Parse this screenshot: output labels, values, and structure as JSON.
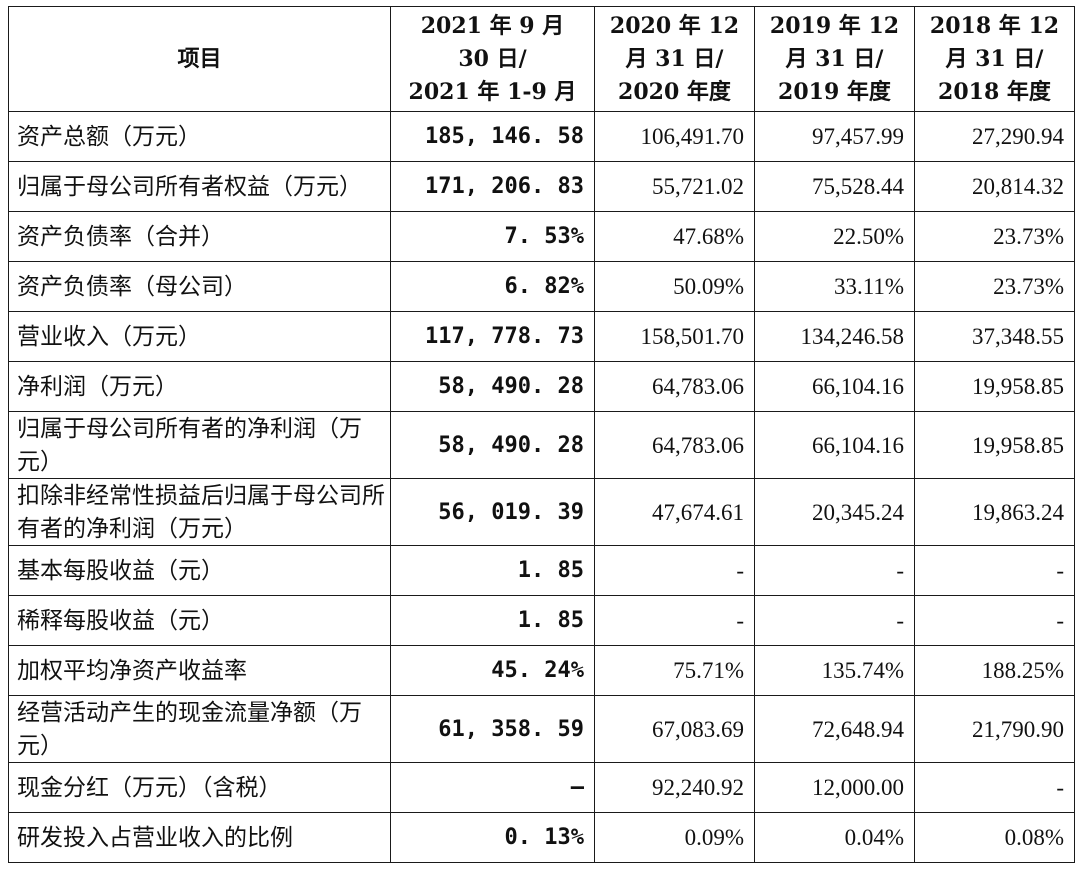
{
  "table": {
    "headers": [
      {
        "lines": [
          "项目"
        ]
      },
      {
        "lines": [
          "2021 年 9 月",
          "30 日/",
          "2021 年 1-9 月"
        ]
      },
      {
        "lines": [
          "2020 年 12",
          "月 31 日/",
          "2020 年度"
        ]
      },
      {
        "lines": [
          "2019 年 12",
          "月 31 日/",
          "2019 年度"
        ]
      },
      {
        "lines": [
          "2018 年 12",
          "月 31 日/",
          "2018 年度"
        ]
      }
    ],
    "rows": [
      {
        "label": "资产总额（万元）",
        "values": [
          "185, 146. 58",
          "106,491.70",
          "97,457.99",
          "27,290.94"
        ]
      },
      {
        "label": "归属于母公司所有者权益（万元）",
        "values": [
          "171, 206. 83",
          "55,721.02",
          "75,528.44",
          "20,814.32"
        ]
      },
      {
        "label": "资产负债率（合并）",
        "values": [
          "7. 53%",
          "47.68%",
          "22.50%",
          "23.73%"
        ]
      },
      {
        "label": "资产负债率（母公司）",
        "values": [
          "6. 82%",
          "50.09%",
          "33.11%",
          "23.73%"
        ]
      },
      {
        "label": "营业收入（万元）",
        "values": [
          "117, 778. 73",
          "158,501.70",
          "134,246.58",
          "37,348.55"
        ]
      },
      {
        "label": "净利润（万元）",
        "values": [
          "58, 490. 28",
          "64,783.06",
          "66,104.16",
          "19,958.85"
        ]
      },
      {
        "label": "归属于母公司所有者的净利润（万元）",
        "values": [
          "58, 490. 28",
          "64,783.06",
          "66,104.16",
          "19,958.85"
        ]
      },
      {
        "label": "扣除非经常性损益后归属于母公司所有者的净利润（万元）",
        "values": [
          "56, 019. 39",
          "47,674.61",
          "20,345.24",
          "19,863.24"
        ]
      },
      {
        "label": "基本每股收益（元）",
        "values": [
          "1. 85",
          "-",
          "-",
          "-"
        ]
      },
      {
        "label": "稀释每股收益（元）",
        "values": [
          "1. 85",
          "-",
          "-",
          "-"
        ]
      },
      {
        "label": "加权平均净资产收益率",
        "values": [
          "45. 24%",
          "75.71%",
          "135.74%",
          "188.25%"
        ]
      },
      {
        "label": "经营活动产生的现金流量净额（万元）",
        "values": [
          "61, 358. 59",
          "67,083.69",
          "72,648.94",
          "21,790.90"
        ]
      },
      {
        "label": "现金分红（万元）（含税）",
        "values": [
          "–",
          "92,240.92",
          "12,000.00",
          "-"
        ]
      },
      {
        "label": "研发投入占营业收入的比例",
        "values": [
          "0. 13%",
          "0.09%",
          "0.04%",
          "0.08%"
        ]
      }
    ]
  }
}
